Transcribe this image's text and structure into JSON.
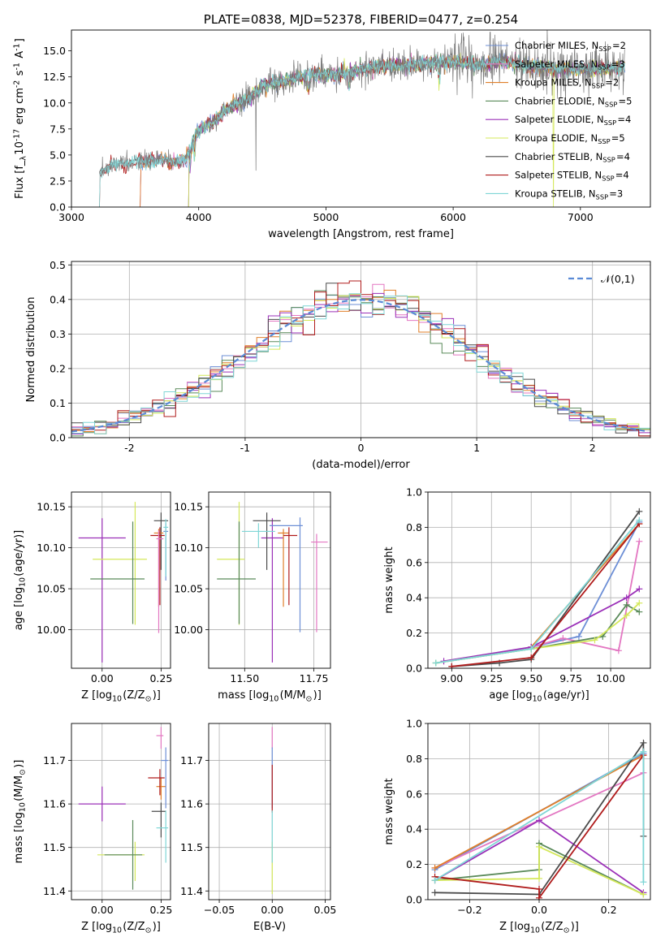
{
  "colors": {
    "Chabrier MILES": "#6d8fd6",
    "Salpeter MILES": "#e377c2",
    "Kroupa MILES": "#e07f29",
    "Chabrier ELODIE": "#5a8a5a",
    "Salpeter ELODIE": "#9b30b8",
    "Kroupa ELODIE": "#d4e85a",
    "Chabrier STELIB": "#4b4b4b",
    "Salpeter STELIB": "#b01c1c",
    "Kroupa STELIB": "#7fd6d6"
  },
  "chart_data": [
    {
      "id": "spectrum",
      "type": "line",
      "title": "PLATE=0838, MJD=52378, FIBERID=0477, z=0.254",
      "xlabel": "wavelength [Angstrom, rest frame]",
      "ylabel": "Flux [f$_\\lambda$10$^{-17}$ erg cm$^{-2}$ s$^{-1}$ A$^{-1}$]",
      "xlim": [
        3000,
        7550
      ],
      "ylim": [
        0,
        17
      ],
      "xticks": [
        3000,
        4000,
        5000,
        6000,
        7000
      ],
      "yticks": [
        0.0,
        2.5,
        5.0,
        7.5,
        10.0,
        12.5,
        15.0
      ],
      "grid": false,
      "legend_position": "top-right",
      "x": [
        3220,
        3300,
        3400,
        3500,
        3600,
        3700,
        3800,
        3900,
        4000,
        4100,
        4200,
        4300,
        4400,
        4500,
        4600,
        4700,
        4800,
        4900,
        5000,
        5200,
        5400,
        5600,
        5800,
        6000,
        6200,
        6400,
        6600,
        6800,
        7000,
        7200,
        7350
      ],
      "y_data": [
        3.2,
        4.0,
        4.2,
        4.3,
        4.4,
        4.5,
        4.3,
        4.6,
        7.5,
        8.0,
        9.2,
        10.0,
        10.5,
        11.5,
        12.0,
        12.2,
        12.5,
        12.8,
        12.6,
        13.0,
        13.5,
        13.6,
        13.8,
        14.0,
        13.6,
        14.0,
        13.5,
        13.3,
        13.2,
        13.3,
        13.5
      ],
      "series": [
        {
          "name": "Chabrier MILES, N$_{SSP}$=2",
          "start": 3540
        },
        {
          "name": "Salpeter MILES, N$_{SSP}$=3",
          "start": 3540
        },
        {
          "name": "Kroupa MILES, N$_{SSP}$=2",
          "start": 3540
        },
        {
          "name": "Chabrier ELODIE, N$_{SSP}$=5",
          "start": 3920
        },
        {
          "name": "Salpeter ELODIE, N$_{SSP}$=4",
          "start": 3920
        },
        {
          "name": "Kroupa ELODIE, N$_{SSP}$=5",
          "start": 3920
        },
        {
          "name": "Chabrier STELIB, N$_{SSP}$=4",
          "start": 3220
        },
        {
          "name": "Salpeter STELIB, N$_{SSP}$=4",
          "start": 3220
        },
        {
          "name": "Kroupa STELIB, N$_{SSP}$=3",
          "start": 3220
        }
      ]
    },
    {
      "id": "residuals",
      "type": "line",
      "xlabel": "(data-model)/error",
      "ylabel": "Normed distribution",
      "xlim": [
        -2.5,
        2.5
      ],
      "ylim": [
        0,
        0.51
      ],
      "xticks": [
        -2,
        -1,
        0,
        1,
        2
      ],
      "yticks": [
        0.0,
        0.1,
        0.2,
        0.3,
        0.4,
        0.5
      ],
      "grid": true,
      "legend_position": "top-right",
      "reference_label": "$\\mathcal{N}(0,1)$",
      "note": "step histograms of normalized residuals for each of the 9 fits, bin width 0.1"
    },
    {
      "id": "age-vs-Z",
      "type": "scatter",
      "xlabel": "Z [log$_{10}$($Z/Z_\\odot$)]",
      "ylabel": "age  [log$_{10}$($age/yr$)]",
      "xlim": [
        -0.13,
        0.29
      ],
      "ylim": [
        9.953,
        10.168
      ],
      "xticks": [
        0.0,
        0.25
      ],
      "xticklabels": [
        "0.00",
        "0.25"
      ],
      "yticks": [
        10.0,
        10.05,
        10.1,
        10.15
      ],
      "yticklabels": [
        "10.00",
        "10.05",
        "10.10",
        "10.15"
      ],
      "grid": true,
      "points": [
        {
          "fit": "Salpeter ELODIE",
          "x": 0.0,
          "xerr": [
            0.1,
            0.1
          ],
          "y": 10.112,
          "yerr": [
            0.152,
            0.024
          ]
        },
        {
          "fit": "Kroupa ELODIE",
          "x": 0.14,
          "xerr": [
            0.18,
            0.05
          ],
          "y": 10.086,
          "yerr": [
            0.08,
            0.07
          ]
        },
        {
          "fit": "Chabrier ELODIE",
          "x": 0.13,
          "xerr": [
            0.18,
            0.05
          ],
          "y": 10.062,
          "yerr": [
            0.055,
            0.07
          ]
        },
        {
          "fit": "Chabrier STELIB",
          "x": 0.25,
          "xerr": [
            0.03,
            0.03
          ],
          "y": 10.133,
          "yerr": [
            0.06,
            0.01
          ]
        },
        {
          "fit": "Kroupa MILES",
          "x": 0.24,
          "xerr": [
            0.02,
            0.02
          ],
          "y": 10.118,
          "yerr": [
            0.09,
            0.005
          ]
        },
        {
          "fit": "Salpeter STELIB",
          "x": 0.245,
          "xerr": [
            0.04,
            0.02
          ],
          "y": 10.115,
          "yerr": [
            0.085,
            0.01
          ]
        },
        {
          "fit": "Salpeter MILES",
          "x": 0.24,
          "xerr": [
            0.01,
            0.02
          ],
          "y": 10.111,
          "yerr": [
            0.115,
            0.01
          ]
        },
        {
          "fit": "Chabrier MILES",
          "x": 0.27,
          "xerr": [
            0.01,
            0.01
          ],
          "y": 10.12,
          "yerr": [
            0.06,
            0.01
          ]
        },
        {
          "fit": "Kroupa STELIB",
          "x": 0.27,
          "xerr": [
            0.01,
            0.01
          ],
          "y": 10.125,
          "yerr": [
            0.06,
            0.01
          ]
        }
      ]
    },
    {
      "id": "age-vs-mass",
      "type": "scatter",
      "xlabel": "mass [log$_{10}$($M/M_\\odot$)]",
      "ylabel": "",
      "xlim": [
        11.37,
        11.81
      ],
      "ylim": [
        9.953,
        10.168
      ],
      "xticks": [
        11.5,
        11.75
      ],
      "xticklabels": [
        "11.50",
        "11.75"
      ],
      "yticks": [
        10.0,
        10.05,
        10.1,
        10.15
      ],
      "yticklabels": [
        "10.00",
        "10.05",
        "10.10",
        "10.15"
      ],
      "grid": true,
      "points": [
        {
          "fit": "Salpeter ELODIE",
          "x": 11.6,
          "xerr": [
            0.04,
            0.04
          ],
          "y": 10.112,
          "yerr": [
            0.152,
            0.024
          ]
        },
        {
          "fit": "Kroupa ELODIE",
          "x": 11.48,
          "xerr": [
            0.08,
            0.02
          ],
          "y": 10.086,
          "yerr": [
            0.08,
            0.07
          ]
        },
        {
          "fit": "Chabrier ELODIE",
          "x": 11.48,
          "xerr": [
            0.08,
            0.06
          ],
          "y": 10.062,
          "yerr": [
            0.055,
            0.07
          ]
        },
        {
          "fit": "Chabrier STELIB",
          "x": 11.58,
          "xerr": [
            0.05,
            0.05
          ],
          "y": 10.133,
          "yerr": [
            0.06,
            0.01
          ]
        },
        {
          "fit": "Kroupa MILES",
          "x": 11.64,
          "xerr": [
            0.02,
            0.02
          ],
          "y": 10.118,
          "yerr": [
            0.09,
            0.005
          ]
        },
        {
          "fit": "Salpeter STELIB",
          "x": 11.66,
          "xerr": [
            0.02,
            0.03
          ],
          "y": 10.115,
          "yerr": [
            0.085,
            0.01
          ]
        },
        {
          "fit": "Salpeter MILES",
          "x": 11.76,
          "xerr": [
            0.02,
            0.04
          ],
          "y": 10.107,
          "yerr": [
            0.11,
            0.01
          ]
        },
        {
          "fit": "Chabrier MILES",
          "x": 11.7,
          "xerr": [
            0.11,
            0.01
          ],
          "y": 10.127,
          "yerr": [
            0.13,
            0.01
          ]
        },
        {
          "fit": "Kroupa STELIB",
          "x": 11.55,
          "xerr": [
            0.06,
            0.06
          ],
          "y": 10.12,
          "yerr": [
            0.02,
            0.01
          ]
        }
      ]
    },
    {
      "id": "massweight-vs-age",
      "type": "line",
      "xlabel": "age  [log$_{10}$($age/yr$)]",
      "ylabel": "mass weight",
      "xlim": [
        8.85,
        10.25
      ],
      "ylim": [
        0,
        1
      ],
      "xticks": [
        9.0,
        9.25,
        9.5,
        9.75,
        10.0
      ],
      "xticklabels": [
        "9.00",
        "9.25",
        "9.50",
        "9.75",
        "10.00"
      ],
      "yticks": [
        0.0,
        0.2,
        0.4,
        0.6,
        0.8,
        1.0
      ],
      "grid": true,
      "series": [
        {
          "name": "Chabrier MILES",
          "x": [
            9.5,
            9.8,
            10.18
          ],
          "y": [
            0.12,
            0.18,
            0.83
          ]
        },
        {
          "name": "Salpeter MILES",
          "x": [
            9.5,
            9.7,
            10.05,
            10.18
          ],
          "y": [
            0.12,
            0.17,
            0.1,
            0.72
          ]
        },
        {
          "name": "Kroupa MILES",
          "x": [
            9.5,
            10.18
          ],
          "y": [
            0.12,
            0.82
          ]
        },
        {
          "name": "Chabrier ELODIE",
          "x": [
            8.9,
            9.5,
            9.95,
            10.1,
            10.18
          ],
          "y": [
            0.03,
            0.11,
            0.18,
            0.36,
            0.32
          ]
        },
        {
          "name": "Salpeter ELODIE",
          "x": [
            8.95,
            9.5,
            10.1,
            10.18
          ],
          "y": [
            0.04,
            0.12,
            0.4,
            0.45
          ]
        },
        {
          "name": "Kroupa ELODIE",
          "x": [
            8.9,
            9.5,
            9.9,
            10.1,
            10.18
          ],
          "y": [
            0.03,
            0.11,
            0.16,
            0.3,
            0.37
          ]
        },
        {
          "name": "Chabrier STELIB",
          "x": [
            9.0,
            9.3,
            9.5,
            10.18
          ],
          "y": [
            0.01,
            0.03,
            0.05,
            0.89
          ]
        },
        {
          "name": "Salpeter STELIB",
          "x": [
            9.0,
            9.5,
            10.18
          ],
          "y": [
            0.01,
            0.06,
            0.82
          ]
        },
        {
          "name": "Kroupa STELIB",
          "x": [
            8.9,
            9.5,
            10.18
          ],
          "y": [
            0.03,
            0.11,
            0.84
          ]
        }
      ]
    },
    {
      "id": "mass-vs-Z",
      "type": "scatter",
      "xlabel": "Z [log$_{10}$($Z/Z_\\odot$)]",
      "ylabel": "mass [log$_{10}$($M/M_\\odot$)]",
      "xlim": [
        -0.13,
        0.29
      ],
      "ylim": [
        11.38,
        11.785
      ],
      "xticks": [
        0.0,
        0.25
      ],
      "xticklabels": [
        "0.00",
        "0.25"
      ],
      "yticks": [
        11.4,
        11.5,
        11.6,
        11.7
      ],
      "yticklabels": [
        "11.4",
        "11.5",
        "11.6",
        "11.7"
      ],
      "grid": true,
      "points": [
        {
          "fit": "Salpeter ELODIE",
          "x": 0.0,
          "xerr": [
            0.1,
            0.1
          ],
          "y": 11.6,
          "yerr": [
            0.04,
            0.04
          ]
        },
        {
          "fit": "Kroupa ELODIE",
          "x": 0.14,
          "xerr": [
            0.16,
            0.04
          ],
          "y": 11.483,
          "yerr": [
            0.06,
            0.03
          ]
        },
        {
          "fit": "Chabrier ELODIE",
          "x": 0.13,
          "xerr": [
            0.12,
            0.04
          ],
          "y": 11.483,
          "yerr": [
            0.08,
            0.08
          ]
        },
        {
          "fit": "Chabrier STELIB",
          "x": 0.25,
          "xerr": [
            0.04,
            0.02
          ],
          "y": 11.583,
          "yerr": [
            0.06,
            0.02
          ]
        },
        {
          "fit": "Kroupa MILES",
          "x": 0.25,
          "xerr": [
            0.02,
            0.02
          ],
          "y": 11.64,
          "yerr": [
            0.03,
            0.02
          ]
        },
        {
          "fit": "Salpeter STELIB",
          "x": 0.245,
          "xerr": [
            0.05,
            0.02
          ],
          "y": 11.66,
          "yerr": [
            0.04,
            0.02
          ]
        },
        {
          "fit": "Salpeter MILES",
          "x": 0.25,
          "xerr": [
            0.02,
            0.01
          ],
          "y": 11.757,
          "yerr": [
            0.03,
            0.02
          ]
        },
        {
          "fit": "Chabrier MILES",
          "x": 0.27,
          "xerr": [
            0.02,
            0.01
          ],
          "y": 11.7,
          "yerr": [
            0.11,
            0.03
          ]
        },
        {
          "fit": "Kroupa STELIB",
          "x": 0.27,
          "xerr": [
            0.04,
            0.01
          ],
          "y": 11.545,
          "yerr": [
            0.08,
            0.04
          ]
        }
      ]
    },
    {
      "id": "mass-vs-EBV",
      "type": "scatter",
      "xlabel": "E(B-V)",
      "ylabel": "",
      "xlim": [
        -0.06,
        0.055
      ],
      "ylim": [
        11.38,
        11.785
      ],
      "xticks": [
        -0.05,
        0.0,
        0.05
      ],
      "xticklabels": [
        "−0.05",
        "0.00",
        "0.05"
      ],
      "yticks": [
        11.4,
        11.5,
        11.6,
        11.7
      ],
      "yticklabels": [
        "11.4",
        "11.5",
        "11.6",
        "11.7"
      ],
      "grid": true,
      "points": [
        {
          "fit": "Salpeter MILES",
          "x": 0.0,
          "y": 11.757,
          "yerr": [
            0.03,
            0.02
          ]
        },
        {
          "fit": "Chabrier MILES",
          "x": 0.0,
          "y": 11.7,
          "yerr": [
            0.11,
            0.03
          ]
        },
        {
          "fit": "Salpeter STELIB",
          "x": 0.0,
          "y": 11.66,
          "yerr": [
            0.08,
            0.03
          ]
        },
        {
          "fit": "Kroupa ELODIE",
          "x": 0.0,
          "y": 11.483,
          "yerr": [
            0.09,
            0.03
          ]
        },
        {
          "fit": "Kroupa STELIB",
          "x": 0.0,
          "y": 11.545,
          "yerr": [
            0.08,
            0.04
          ]
        }
      ]
    },
    {
      "id": "massweight-vs-Z",
      "type": "line",
      "xlabel": "Z [log$_{10}$($Z/Z_\\odot$)]",
      "ylabel": "mass weight",
      "xlim": [
        -0.32,
        0.32
      ],
      "ylim": [
        0,
        1
      ],
      "xticks": [
        -0.2,
        0.0,
        0.2
      ],
      "xticklabels": [
        "−0.2",
        "0.0",
        "0.2"
      ],
      "yticks": [
        0.0,
        0.2,
        0.4,
        0.6,
        0.8,
        1.0
      ],
      "yticklabels": [
        "0.0",
        "0.2",
        "0.4",
        "0.6",
        "0.8",
        "1.0"
      ],
      "grid": true,
      "series": [
        {
          "name": "Chabrier MILES",
          "x": [
            -0.3,
            0.3
          ],
          "y": [
            0.17,
            0.83
          ]
        },
        {
          "name": "Salpeter MILES",
          "x": [
            -0.3,
            0.3
          ],
          "y": [
            0.18,
            0.72
          ]
        },
        {
          "name": "Kroupa MILES",
          "x": [
            -0.3,
            0.3
          ],
          "y": [
            0.18,
            0.82
          ]
        },
        {
          "name": "Chabrier ELODIE",
          "x": [
            -0.3,
            0.0,
            0.0,
            0.3
          ],
          "y": [
            0.11,
            0.17,
            0.32,
            0.03
          ]
        },
        {
          "name": "Salpeter ELODIE",
          "x": [
            -0.3,
            0.0,
            0.3
          ],
          "y": [
            0.11,
            0.45,
            0.04
          ]
        },
        {
          "name": "Kroupa ELODIE",
          "x": [
            -0.3,
            0.0,
            0.0,
            0.3
          ],
          "y": [
            0.11,
            0.12,
            0.3,
            0.03
          ]
        },
        {
          "name": "Chabrier STELIB",
          "x": [
            -0.3,
            0.0,
            0.3,
            0.3
          ],
          "y": [
            0.04,
            0.03,
            0.89,
            0.36
          ]
        },
        {
          "name": "Salpeter STELIB",
          "x": [
            -0.3,
            0.0,
            0.0,
            0.3
          ],
          "y": [
            0.13,
            0.06,
            0.01,
            0.82
          ]
        },
        {
          "name": "Kroupa STELIB",
          "x": [
            -0.3,
            0.3,
            0.3
          ],
          "y": [
            0.11,
            0.84,
            0.1
          ]
        }
      ]
    }
  ]
}
